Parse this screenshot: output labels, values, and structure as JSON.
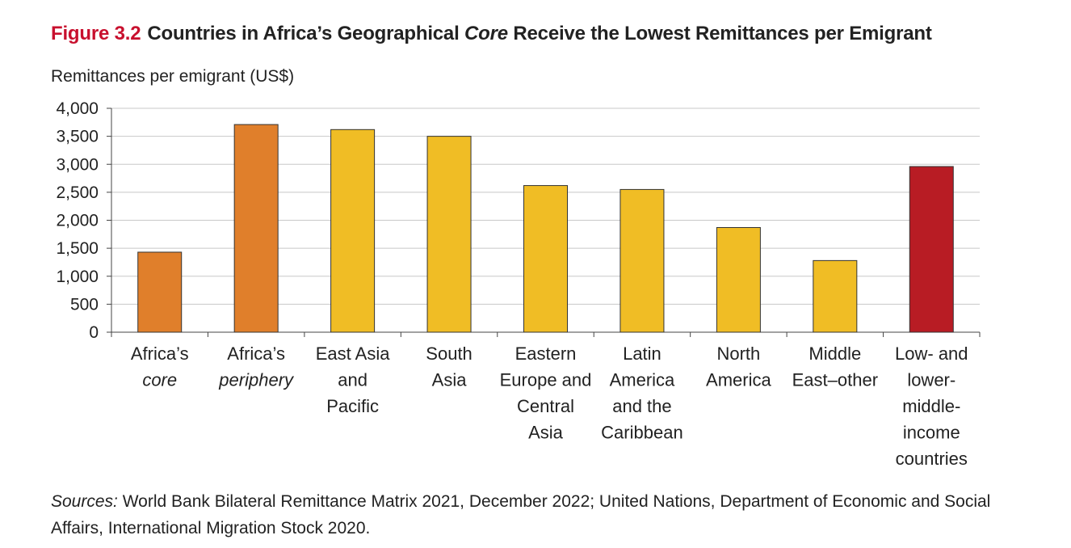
{
  "figure": {
    "label": "Figure 3.2",
    "title_before": "Countries in Africa’s Geographical",
    "title_emph": "Core",
    "title_after": "Receive the Lowest Remittances per Emigrant"
  },
  "chart_data": {
    "type": "bar",
    "title": "Countries in Africa’s Geographical Core Receive the Lowest Remittances per Emigrant",
    "ylabel": "Remittances per emigrant (US$)",
    "xlabel": "",
    "ylim": [
      0,
      4000
    ],
    "yticks": [
      0,
      500,
      1000,
      1500,
      2000,
      2500,
      3000,
      3500,
      4000
    ],
    "ytick_labels": [
      "0",
      "500",
      "1,000",
      "1,500",
      "2,000",
      "2,500",
      "3,000",
      "3,500",
      "4,000"
    ],
    "grid": true,
    "categories": [
      {
        "lines": [
          {
            "text": "Africa’s"
          },
          {
            "text": "core",
            "italic": true
          }
        ]
      },
      {
        "lines": [
          {
            "text": "Africa’s"
          },
          {
            "text": "periphery",
            "italic": true
          }
        ]
      },
      {
        "lines": [
          {
            "text": "East Asia"
          },
          {
            "text": "and"
          },
          {
            "text": "Pacific"
          }
        ]
      },
      {
        "lines": [
          {
            "text": "South"
          },
          {
            "text": "Asia"
          }
        ]
      },
      {
        "lines": [
          {
            "text": "Eastern"
          },
          {
            "text": "Europe and"
          },
          {
            "text": "Central"
          },
          {
            "text": "Asia"
          }
        ]
      },
      {
        "lines": [
          {
            "text": "Latin"
          },
          {
            "text": "America"
          },
          {
            "text": "and the"
          },
          {
            "text": "Caribbean"
          }
        ]
      },
      {
        "lines": [
          {
            "text": "North"
          },
          {
            "text": "America"
          }
        ]
      },
      {
        "lines": [
          {
            "text": "Middle"
          },
          {
            "text": "East–other"
          }
        ]
      },
      {
        "lines": [
          {
            "text": "Low- and"
          },
          {
            "text": "lower-"
          },
          {
            "text": "middle-"
          },
          {
            "text": "income"
          },
          {
            "text": "countries"
          }
        ]
      }
    ],
    "values": [
      1430,
      3710,
      3620,
      3500,
      2620,
      2550,
      1870,
      1280,
      2960
    ],
    "colors": [
      "#e07f2b",
      "#e07f2b",
      "#f0bd25",
      "#f0bd25",
      "#f0bd25",
      "#f0bd25",
      "#f0bd25",
      "#f0bd25",
      "#b81c24"
    ]
  },
  "sources": {
    "label": "Sources:",
    "text": "World Bank Bilateral Remittance Matrix 2021, December 2022; United Nations, Department of Economic and Social Affairs, International Migration Stock 2020."
  }
}
